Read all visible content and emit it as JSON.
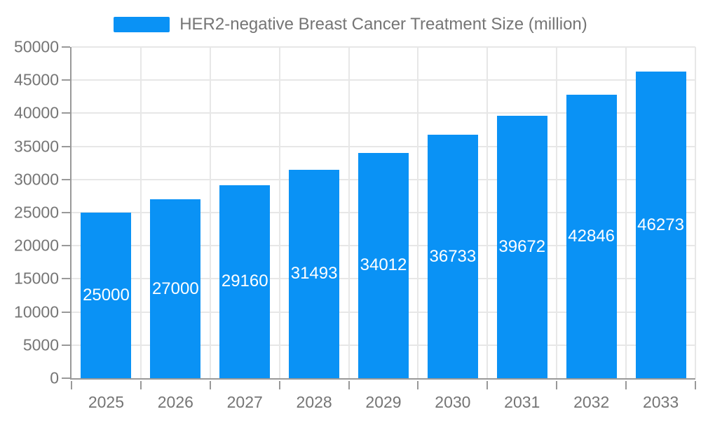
{
  "chart_data": {
    "type": "bar",
    "title": "HER2-negative Breast Cancer Treatment Size (million)",
    "categories": [
      "2025",
      "2026",
      "2027",
      "2028",
      "2029",
      "2030",
      "2031",
      "2032",
      "2033"
    ],
    "values": [
      25000,
      27000,
      29160,
      31493,
      34012,
      36733,
      39672,
      42846,
      46273
    ],
    "xlabel": "",
    "ylabel": "",
    "ylim": [
      0,
      50000
    ],
    "ytick_step": 5000,
    "ytick_labels": [
      "0",
      "5000",
      "10000",
      "15000",
      "20000",
      "25000",
      "30000",
      "35000",
      "40000",
      "45000",
      "50000"
    ],
    "legend_position": "top-center",
    "grid": "horizontal and vertical gridlines on",
    "data_label_position": "inside-center",
    "colors": {
      "bar": "#0a92f5",
      "data_label": "#ffffff",
      "axis_line": "#999999",
      "axis_text": "#757575",
      "grid_line": "#e7e7e7",
      "background": "#ffffff"
    }
  }
}
